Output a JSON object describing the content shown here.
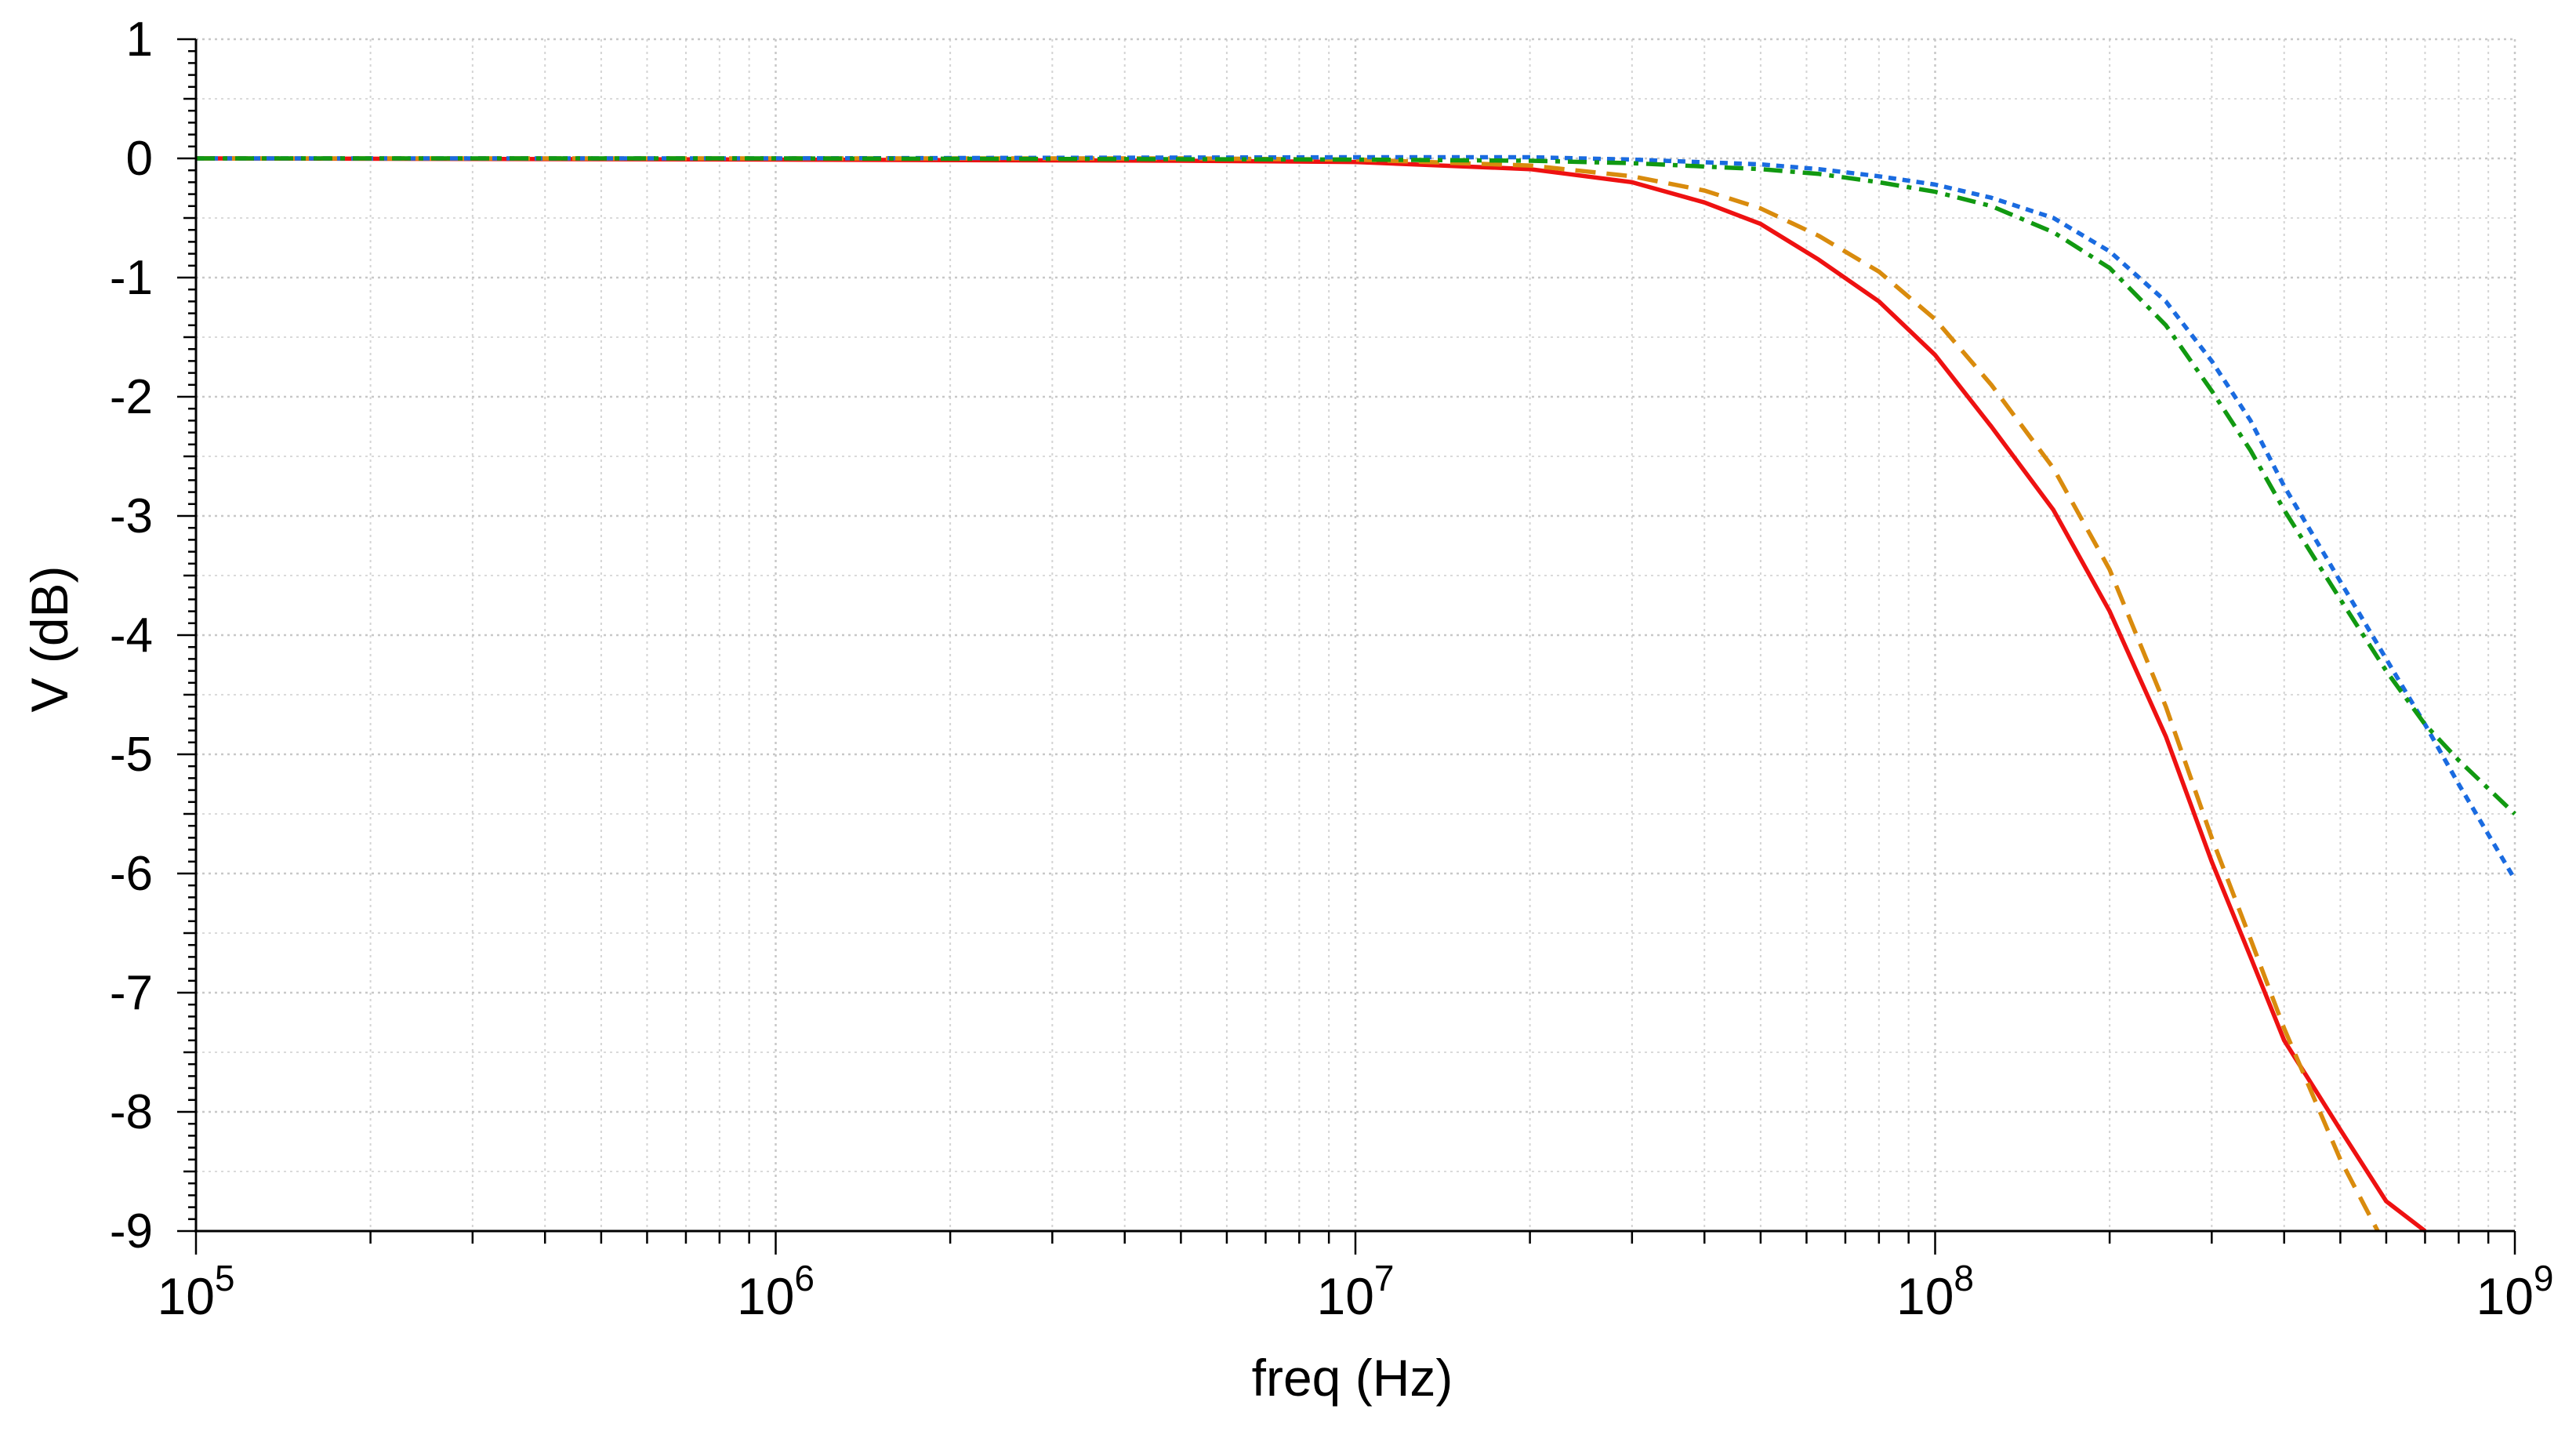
{
  "chart_data": {
    "type": "line",
    "xscale": "log",
    "xlim": [
      100000,
      1000000000
    ],
    "ylim": [
      -9,
      1
    ],
    "xlabel": "freq (Hz)",
    "ylabel": "V (dB)",
    "grid": true,
    "x_ticks": [
      {
        "base": "10",
        "exp": "5"
      },
      {
        "base": "10",
        "exp": "6"
      },
      {
        "base": "10",
        "exp": "7"
      },
      {
        "base": "10",
        "exp": "8"
      },
      {
        "base": "10",
        "exp": "9"
      }
    ],
    "y_ticks": [
      "1",
      "0",
      "-1",
      "-2",
      "-3",
      "-4",
      "-5",
      "-6",
      "-7",
      "-8",
      "-9"
    ],
    "series": [
      {
        "color": "#ee1111",
        "dash": "solid",
        "points": [
          [
            100000,
            0
          ],
          [
            1000000,
            -0.01
          ],
          [
            5000000,
            -0.02
          ],
          [
            10000000,
            -0.03
          ],
          [
            20000000,
            -0.09
          ],
          [
            30000000,
            -0.2
          ],
          [
            40000000,
            -0.37
          ],
          [
            50000000,
            -0.55
          ],
          [
            63000000,
            -0.85
          ],
          [
            80000000,
            -1.2
          ],
          [
            100000000,
            -1.65
          ],
          [
            125000000,
            -2.25
          ],
          [
            160000000,
            -2.95
          ],
          [
            200000000,
            -3.8
          ],
          [
            250000000,
            -4.85
          ],
          [
            300000000,
            -5.9
          ],
          [
            350000000,
            -6.7
          ],
          [
            400000000,
            -7.4
          ],
          [
            500000000,
            -8.15
          ],
          [
            600000000,
            -8.75
          ],
          [
            700000000,
            -9.0
          ]
        ]
      },
      {
        "color": "#d98b0d",
        "dash": "dashed",
        "points": [
          [
            100000,
            0
          ],
          [
            1000000,
            0
          ],
          [
            5000000,
            0
          ],
          [
            10000000,
            -0.01
          ],
          [
            20000000,
            -0.06
          ],
          [
            30000000,
            -0.15
          ],
          [
            40000000,
            -0.27
          ],
          [
            50000000,
            -0.42
          ],
          [
            63000000,
            -0.65
          ],
          [
            80000000,
            -0.95
          ],
          [
            100000000,
            -1.35
          ],
          [
            125000000,
            -1.9
          ],
          [
            160000000,
            -2.6
          ],
          [
            200000000,
            -3.45
          ],
          [
            250000000,
            -4.6
          ],
          [
            300000000,
            -5.7
          ],
          [
            350000000,
            -6.55
          ],
          [
            400000000,
            -7.3
          ],
          [
            500000000,
            -8.4
          ],
          [
            580000000,
            -9.0
          ]
        ]
      },
      {
        "color": "#1a6be0",
        "dash": "dotted",
        "points": [
          [
            100000,
            0
          ],
          [
            1000000,
            0
          ],
          [
            10000000,
            0.01
          ],
          [
            20000000,
            0.01
          ],
          [
            30000000,
            -0.01
          ],
          [
            50000000,
            -0.05
          ],
          [
            63000000,
            -0.09
          ],
          [
            80000000,
            -0.15
          ],
          [
            100000000,
            -0.22
          ],
          [
            125000000,
            -0.33
          ],
          [
            160000000,
            -0.5
          ],
          [
            200000000,
            -0.78
          ],
          [
            250000000,
            -1.2
          ],
          [
            300000000,
            -1.7
          ],
          [
            350000000,
            -2.2
          ],
          [
            400000000,
            -2.75
          ],
          [
            500000000,
            -3.55
          ],
          [
            600000000,
            -4.2
          ],
          [
            700000000,
            -4.75
          ],
          [
            800000000,
            -5.25
          ],
          [
            1000000000,
            -6.05
          ]
        ]
      },
      {
        "color": "#119911",
        "dash": "dashdot",
        "points": [
          [
            100000,
            0
          ],
          [
            1000000,
            0
          ],
          [
            10000000,
            -0.01
          ],
          [
            20000000,
            -0.02
          ],
          [
            30000000,
            -0.04
          ],
          [
            50000000,
            -0.09
          ],
          [
            63000000,
            -0.13
          ],
          [
            80000000,
            -0.2
          ],
          [
            100000000,
            -0.28
          ],
          [
            125000000,
            -0.4
          ],
          [
            160000000,
            -0.62
          ],
          [
            200000000,
            -0.92
          ],
          [
            250000000,
            -1.4
          ],
          [
            300000000,
            -1.95
          ],
          [
            350000000,
            -2.45
          ],
          [
            400000000,
            -2.95
          ],
          [
            500000000,
            -3.7
          ],
          [
            600000000,
            -4.3
          ],
          [
            700000000,
            -4.75
          ],
          [
            800000000,
            -5.05
          ],
          [
            1000000000,
            -5.5
          ]
        ]
      }
    ]
  }
}
